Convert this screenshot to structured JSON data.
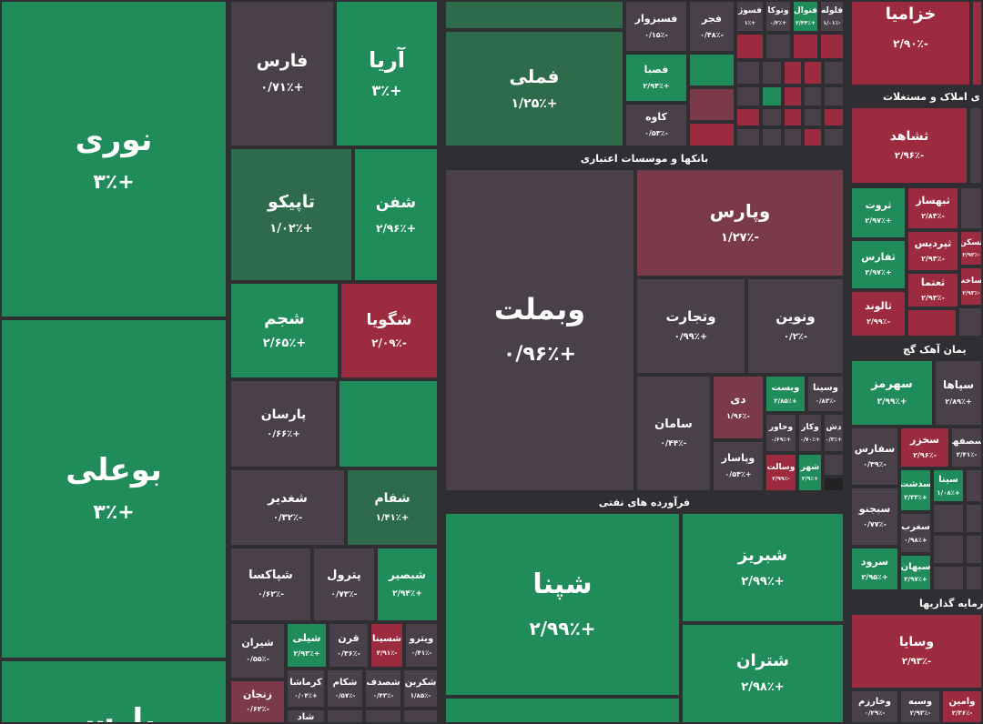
{
  "sector_headers": {
    "banks": "بانکها و موسسات اعتباری",
    "oil": "فرآورده های نفتی",
    "real_estate": "ی املاک و مستغلات",
    "cement": "یمان آهک گچ",
    "investment": "رمایه گذاریها"
  },
  "tiles": {
    "noori": {
      "name": "نوری",
      "pct": "+۳٪"
    },
    "booali": {
      "name": "بوعلی",
      "pct": "+۳٪"
    },
    "pars": {
      "name": "پارس"
    },
    "fars": {
      "name": "فارس",
      "pct": "+۰/۷۱٪"
    },
    "arya": {
      "name": "آریا",
      "pct": "+۳٪"
    },
    "tapico": {
      "name": "تاپیکو",
      "pct": "+۱/۰۲٪"
    },
    "shefan": {
      "name": "شفن",
      "pct": "+۲/۹۶٪"
    },
    "shajam": {
      "name": "شجم",
      "pct": "+۲/۶۵٪"
    },
    "shegooya": {
      "name": "شگویا",
      "pct": "-۲/۰۹٪"
    },
    "parsan": {
      "name": "پارسان",
      "pct": "+۰/۶۶٪"
    },
    "shoghdir": {
      "name": "شغدیر",
      "pct": "-۰/۳۲٪"
    },
    "shafam": {
      "name": "شفام",
      "pct": "+۱/۴۱٪"
    },
    "shepaksa": {
      "name": "شپاکسا",
      "pct": "-۰/۶۲٪"
    },
    "petrol": {
      "name": "پترول",
      "pct": "-۰/۷۳٪"
    },
    "shebasir": {
      "name": "شبصیر",
      "pct": "+۲/۹۴٪"
    },
    "shiran": {
      "name": "شیران",
      "pct": "-۰/۵۵٪"
    },
    "sheli": {
      "name": "شیلی",
      "pct": "+۲/۹۳٪"
    },
    "qarn": {
      "name": "قرن",
      "pct": "-۰/۳۶٪"
    },
    "shesina": {
      "name": "شسینا",
      "pct": "-۲/۹۱٪"
    },
    "vitro": {
      "name": "ویترو",
      "pct": "-۰/۴۱٪"
    },
    "zanjan": {
      "name": "زنجان",
      "pct": "-۰/۶۲٪"
    },
    "kermasha": {
      "name": "کرماشا",
      "pct": "+۰/۰۴٪"
    },
    "shekam": {
      "name": "شکام",
      "pct": "-۰/۵۷٪"
    },
    "shesadaf": {
      "name": "شصدف",
      "pct": "-۰/۴۳٪"
    },
    "shekarin": {
      "name": "شکربن",
      "pct": "-۱/۸۵٪"
    },
    "shad": {
      "name": "شاد"
    },
    "famli": {
      "name": "فملی",
      "pct": "+۱/۲۵٪"
    },
    "fesabzevar": {
      "name": "فسبزوار",
      "pct": "-۰/۱۵٪"
    },
    "fajr": {
      "name": "فجر",
      "pct": "-۰/۴۸٪"
    },
    "fasoz": {
      "name": "فسوژ",
      "pct": "+۱٪"
    },
    "vatoka": {
      "name": "وتوکا",
      "pct": "+۰/۲٪"
    },
    "fenval": {
      "name": "فنوال",
      "pct": "+۲/۴۴٪"
    },
    "felvala": {
      "name": "فلوله",
      "pct": "-۱/۰۱٪"
    },
    "fesba": {
      "name": "فصبا",
      "pct": "+۲/۹۴٪"
    },
    "kaveh": {
      "name": "کاوه",
      "pct": "-۰/۵۳٪"
    },
    "vebmellat": {
      "name": "وبملت",
      "pct": "+۰/۹۶٪"
    },
    "vepars": {
      "name": "وپارس",
      "pct": "-۱/۲۷٪"
    },
    "vetejarat": {
      "name": "وتجارت",
      "pct": "+۰/۹۹٪"
    },
    "venovin": {
      "name": "ونوین",
      "pct": "-۰/۲٪"
    },
    "saman": {
      "name": "سامان",
      "pct": "-۰/۴۴٪"
    },
    "di": {
      "name": "دی",
      "pct": "-۱/۹۶٪"
    },
    "vebast": {
      "name": "وبست",
      "pct": "+۲/۸۵٪"
    },
    "vesina": {
      "name": "وسینا",
      "pct": "-۰/۸۳٪"
    },
    "vekhavar": {
      "name": "وخاور",
      "pct": "+۰/۶۹٪"
    },
    "vekar": {
      "name": "وکار",
      "pct": "+۰/۷۰٪"
    },
    "dash": {
      "name": "دش",
      "pct": "+۰/۳٪"
    },
    "vepasar": {
      "name": "وپاسار",
      "pct": "+۰/۵۴٪"
    },
    "vesalet": {
      "name": "وسالت",
      "pct": "-۲/۹۹٪"
    },
    "shahr": {
      "name": "شهر",
      "pct": "+۲/۹٪"
    },
    "shepna": {
      "name": "شپنا",
      "pct": "+۲/۹۹٪"
    },
    "shebriz": {
      "name": "شبریز",
      "pct": "+۲/۹۹٪"
    },
    "shetran": {
      "name": "شتران",
      "pct": "+۲/۹۸٪"
    },
    "khazamia": {
      "name": "خزامیا",
      "pct": "-۲/۹۰٪"
    },
    "sheshahed": {
      "name": "ثشاهد",
      "pct": "-۲/۹۶٪"
    },
    "servat": {
      "name": "ثروت",
      "pct": "+۲/۹۷٪"
    },
    "sebahaz": {
      "name": "ثبهساز",
      "pct": "-۲/۸۴٪"
    },
    "tefars": {
      "name": "ثفارس",
      "pct": "+۲/۹۷٪"
    },
    "tepardis": {
      "name": "ثپردیس",
      "pct": "-۲/۹۴٪"
    },
    "teemad": {
      "name": "ثعتما",
      "pct": "-۲/۹۳٪"
    },
    "talvand": {
      "name": "ثالوند",
      "pct": "-۲/۹۹٪"
    },
    "teskan": {
      "name": "ثسکن",
      "pct": "-۲/۹۳٪"
    },
    "tesakht": {
      "name": "ثساخت",
      "pct": "-۲/۹۳٪"
    },
    "seharmoz": {
      "name": "سهرمز",
      "pct": "+۲/۹۹٪"
    },
    "sepaha": {
      "name": "سپاها",
      "pct": "+۲/۸۹٪"
    },
    "sefars": {
      "name": "سفارس",
      "pct": "-۰/۳۹٪"
    },
    "sekhazar": {
      "name": "سخزر",
      "pct": "-۲/۹۶٪"
    },
    "sesfaha": {
      "name": "سصفها",
      "pct": "-۲/۴۱٪"
    },
    "sebijno": {
      "name": "سبجنو",
      "pct": "-۰/۷۷٪"
    },
    "sedashtan": {
      "name": "سدشت",
      "pct": "+۲/۳۳٪"
    },
    "sina": {
      "name": "سینا",
      "pct": "+۱/۰۸٪"
    },
    "seghrb": {
      "name": "سغرب",
      "pct": "+۰/۹۸٪"
    },
    "sarood": {
      "name": "سرود",
      "pct": "+۲/۹۵٪"
    },
    "sebahan": {
      "name": "سبهان",
      "pct": "+۲/۹۷٪"
    },
    "vesaya": {
      "name": "وسایا",
      "pct": "-۲/۹۳٪"
    },
    "vekharazm": {
      "name": "وخارزم",
      "pct": "-۰/۲۹٪"
    },
    "vesbah": {
      "name": "وسبه",
      "pct": "-۲/۹۳٪"
    },
    "vamin": {
      "name": "وامین",
      "pct": "-۲/۳۶٪"
    }
  }
}
